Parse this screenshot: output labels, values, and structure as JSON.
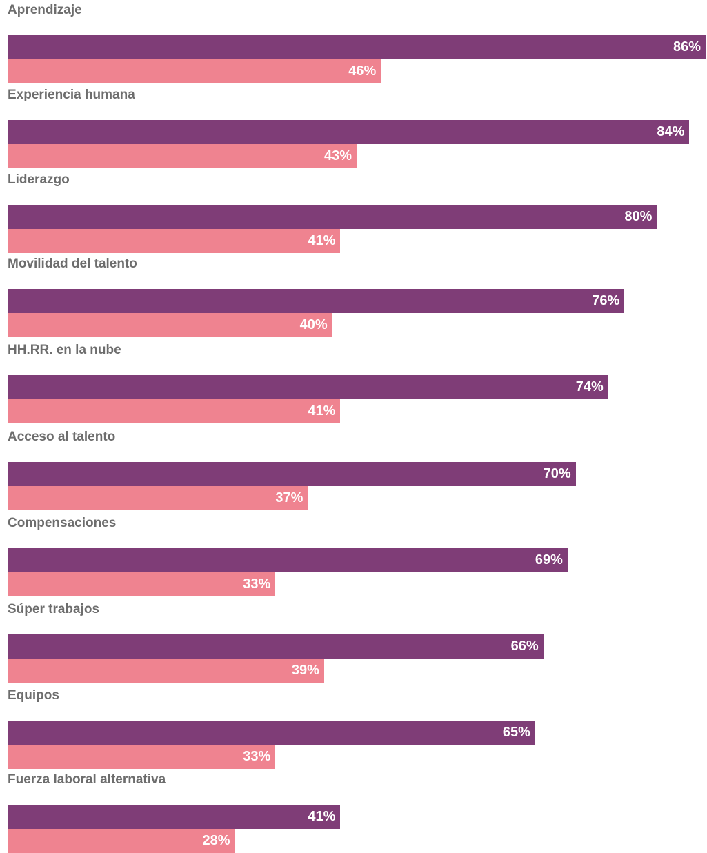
{
  "chart_data": {
    "type": "bar",
    "orientation": "horizontal",
    "categories": [
      "Aprendizaje",
      "Experiencia humana",
      "Liderazgo",
      "Movilidad del talento",
      "HH.RR. en la nube",
      "Acceso al talento",
      "Compensaciones",
      "Súper trabajos",
      "Equipos",
      "Fuerza laboral alternativa"
    ],
    "series": [
      {
        "values": [
          86,
          84,
          80,
          76,
          74,
          70,
          69,
          66,
          65,
          41
        ],
        "color": "#7f3d77"
      },
      {
        "values": [
          46,
          43,
          41,
          40,
          41,
          37,
          33,
          39,
          33,
          28
        ],
        "color": "#ef8390"
      }
    ],
    "value_suffix": "%",
    "xlim": [
      0,
      100
    ],
    "grid": false,
    "legend": "none"
  }
}
